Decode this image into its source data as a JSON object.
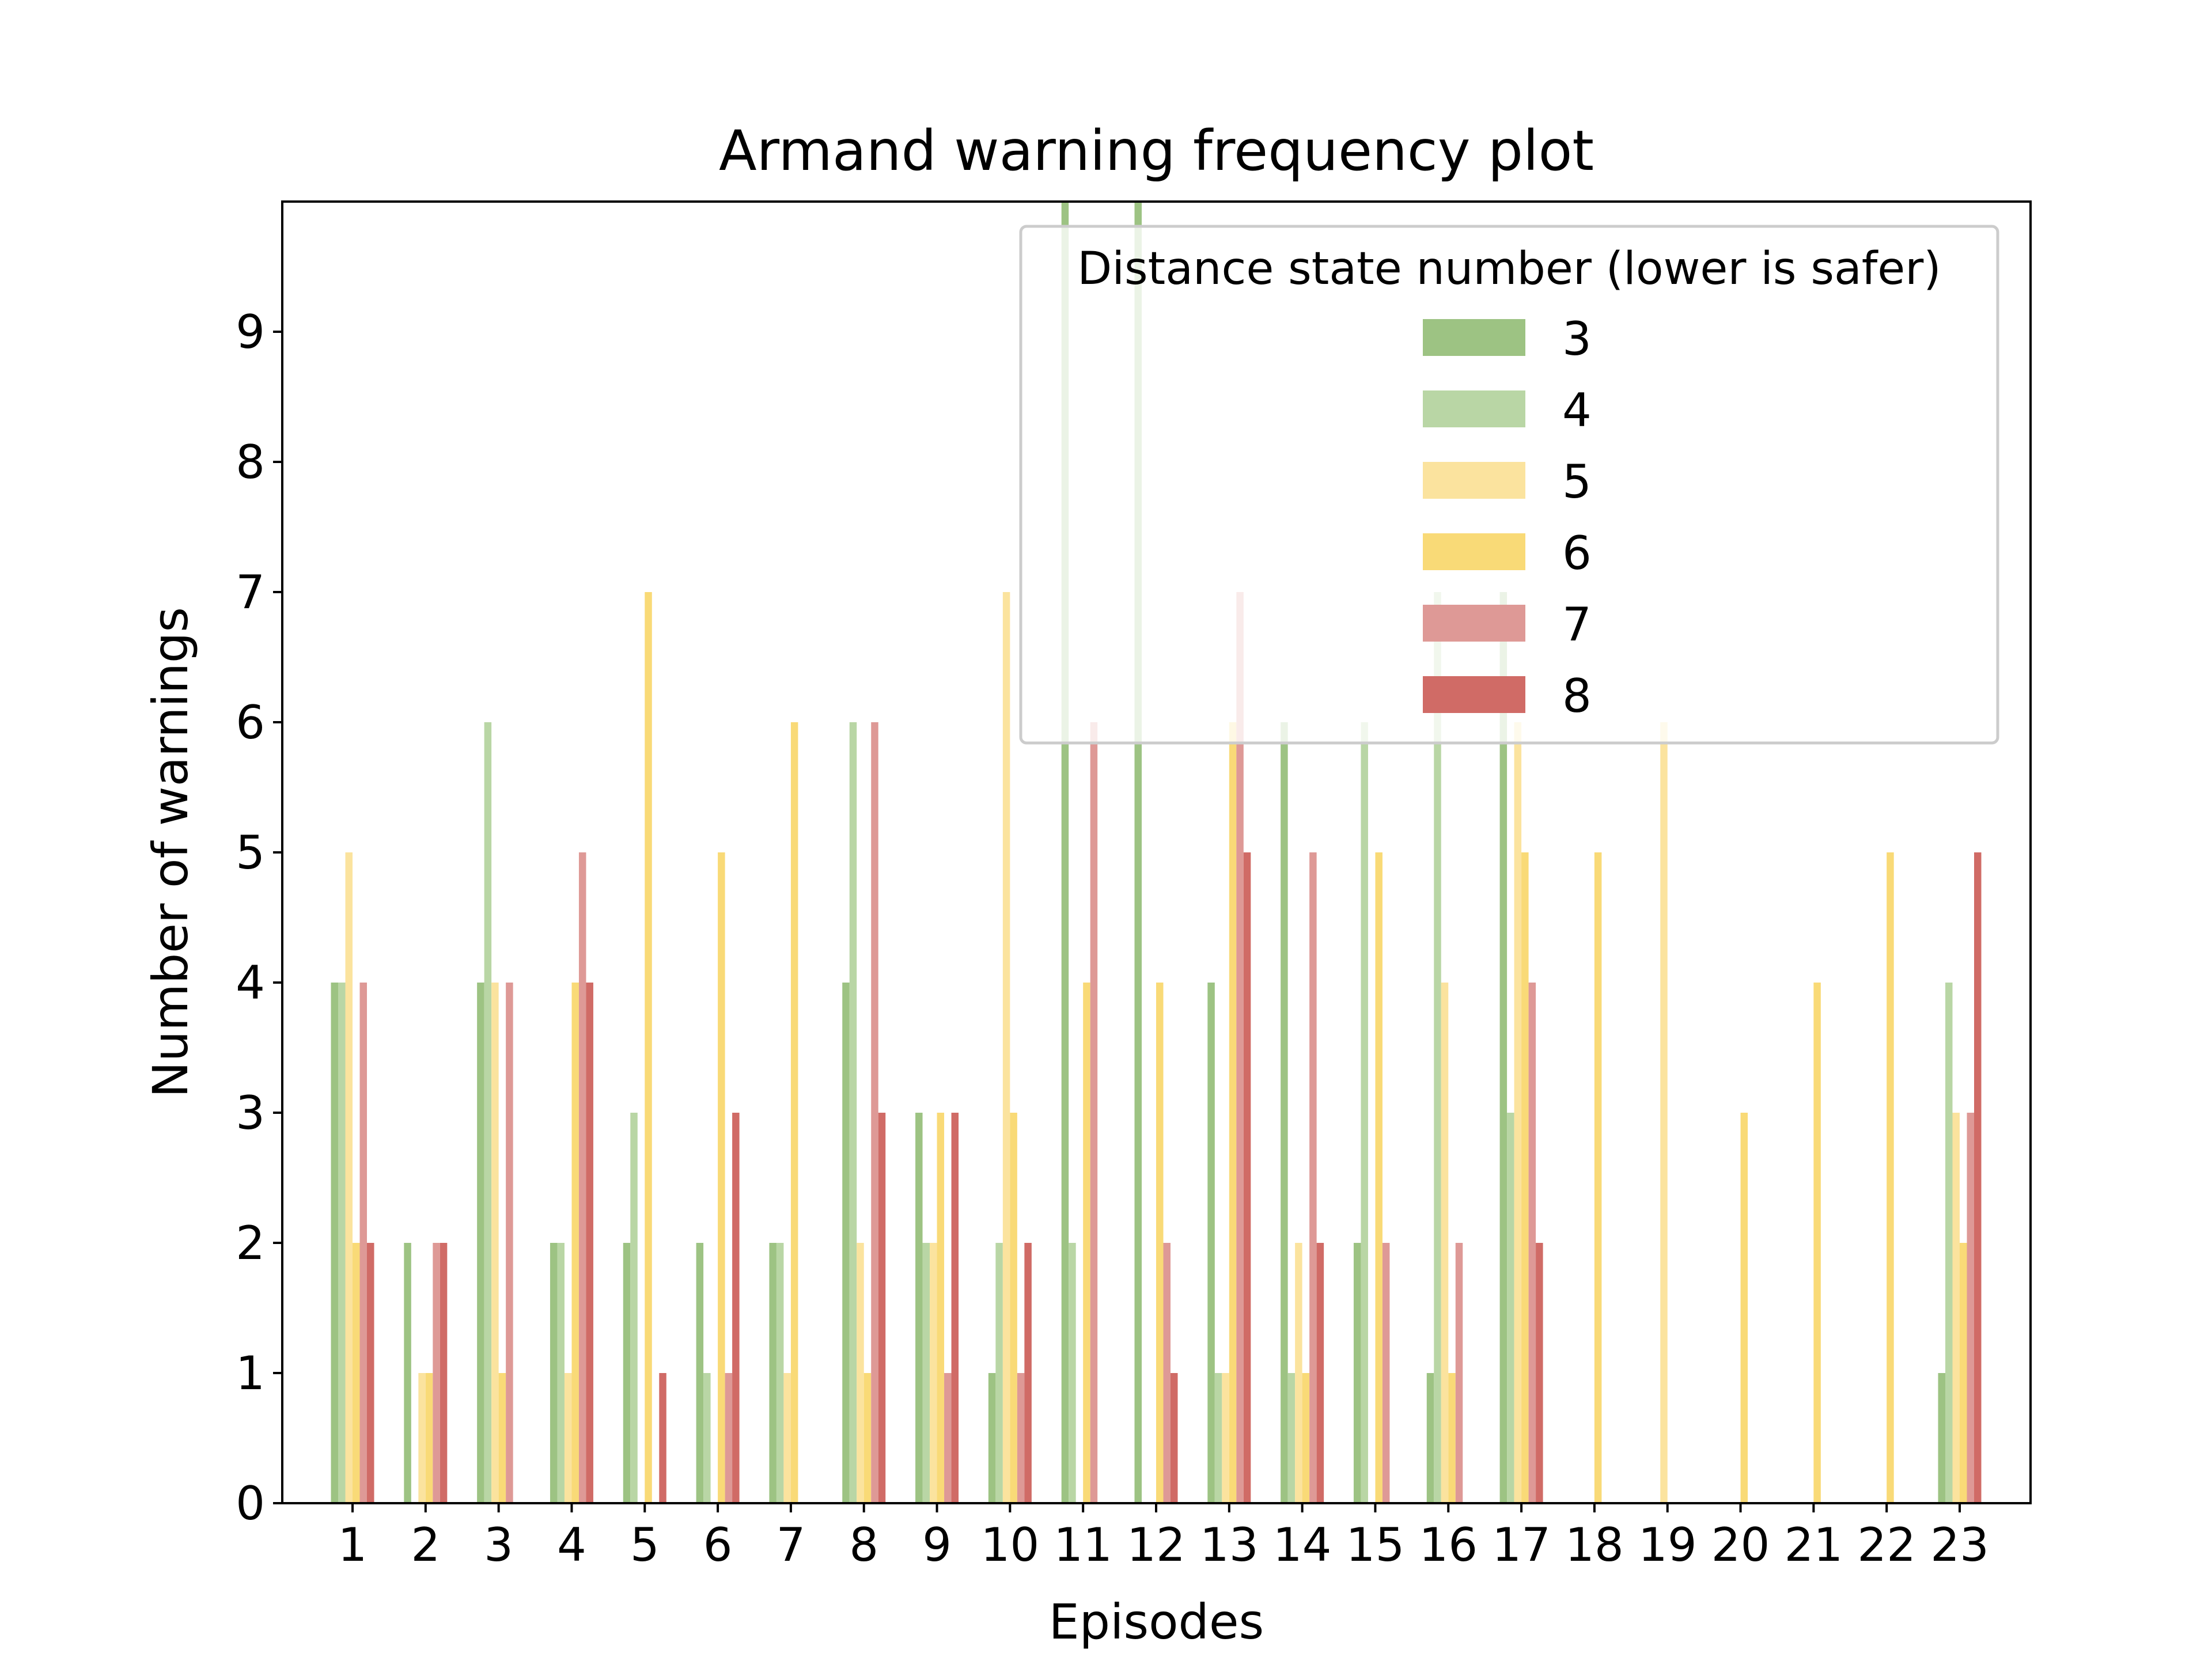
{
  "chart_data": {
    "type": "bar",
    "title": "Armand warning frequency plot",
    "xlabel": "Episodes",
    "ylabel": "Number of warnings",
    "ylim": [
      0,
      10
    ],
    "yticks": [
      0,
      1,
      2,
      3,
      4,
      5,
      6,
      7,
      8,
      9
    ],
    "grid": false,
    "legend": {
      "title": "Distance state number (lower is safer)",
      "placement": "upper right"
    },
    "categories": [
      "1",
      "2",
      "3",
      "4",
      "5",
      "6",
      "7",
      "8",
      "9",
      "10",
      "11",
      "12",
      "13",
      "14",
      "15",
      "16",
      "17",
      "18",
      "19",
      "20",
      "21",
      "22",
      "23"
    ],
    "series": [
      {
        "name": "3",
        "color": "#9dc383",
        "opacity": 1.0,
        "values": [
          4,
          2,
          4,
          2,
          2,
          2,
          2,
          4,
          3,
          1,
          10,
          10,
          4,
          6,
          2,
          1,
          7,
          0,
          0,
          0,
          0,
          0,
          1
        ]
      },
      {
        "name": "4",
        "color": "#b9d6a5",
        "opacity": 1.0,
        "values": [
          4,
          0,
          6,
          2,
          3,
          1,
          2,
          6,
          2,
          2,
          2,
          0,
          1,
          1,
          6,
          7,
          3,
          0,
          0,
          0,
          0,
          0,
          4
        ]
      },
      {
        "name": "5",
        "color": "#fbe39e",
        "opacity": 1.0,
        "values": [
          5,
          1,
          4,
          1,
          0,
          0,
          1,
          2,
          2,
          7,
          0,
          0,
          1,
          2,
          0,
          4,
          6,
          0,
          6,
          0,
          0,
          0,
          3
        ]
      },
      {
        "name": "6",
        "color": "#f9da77",
        "opacity": 1.0,
        "values": [
          2,
          1,
          1,
          4,
          7,
          5,
          6,
          1,
          3,
          3,
          4,
          4,
          6,
          1,
          5,
          1,
          5,
          5,
          0,
          3,
          4,
          5,
          2
        ]
      },
      {
        "name": "7",
        "color": "#de9996",
        "opacity": 1.0,
        "values": [
          4,
          2,
          4,
          5,
          0,
          1,
          0,
          6,
          1,
          1,
          6,
          2,
          7,
          5,
          2,
          2,
          4,
          0,
          0,
          0,
          0,
          0,
          3
        ]
      },
      {
        "name": "8",
        "color": "#d06b66",
        "opacity": 1.0,
        "values": [
          2,
          2,
          0,
          4,
          1,
          3,
          0,
          3,
          3,
          2,
          0,
          1,
          5,
          2,
          0,
          0,
          2,
          0,
          0,
          0,
          0,
          0,
          5
        ]
      }
    ]
  }
}
